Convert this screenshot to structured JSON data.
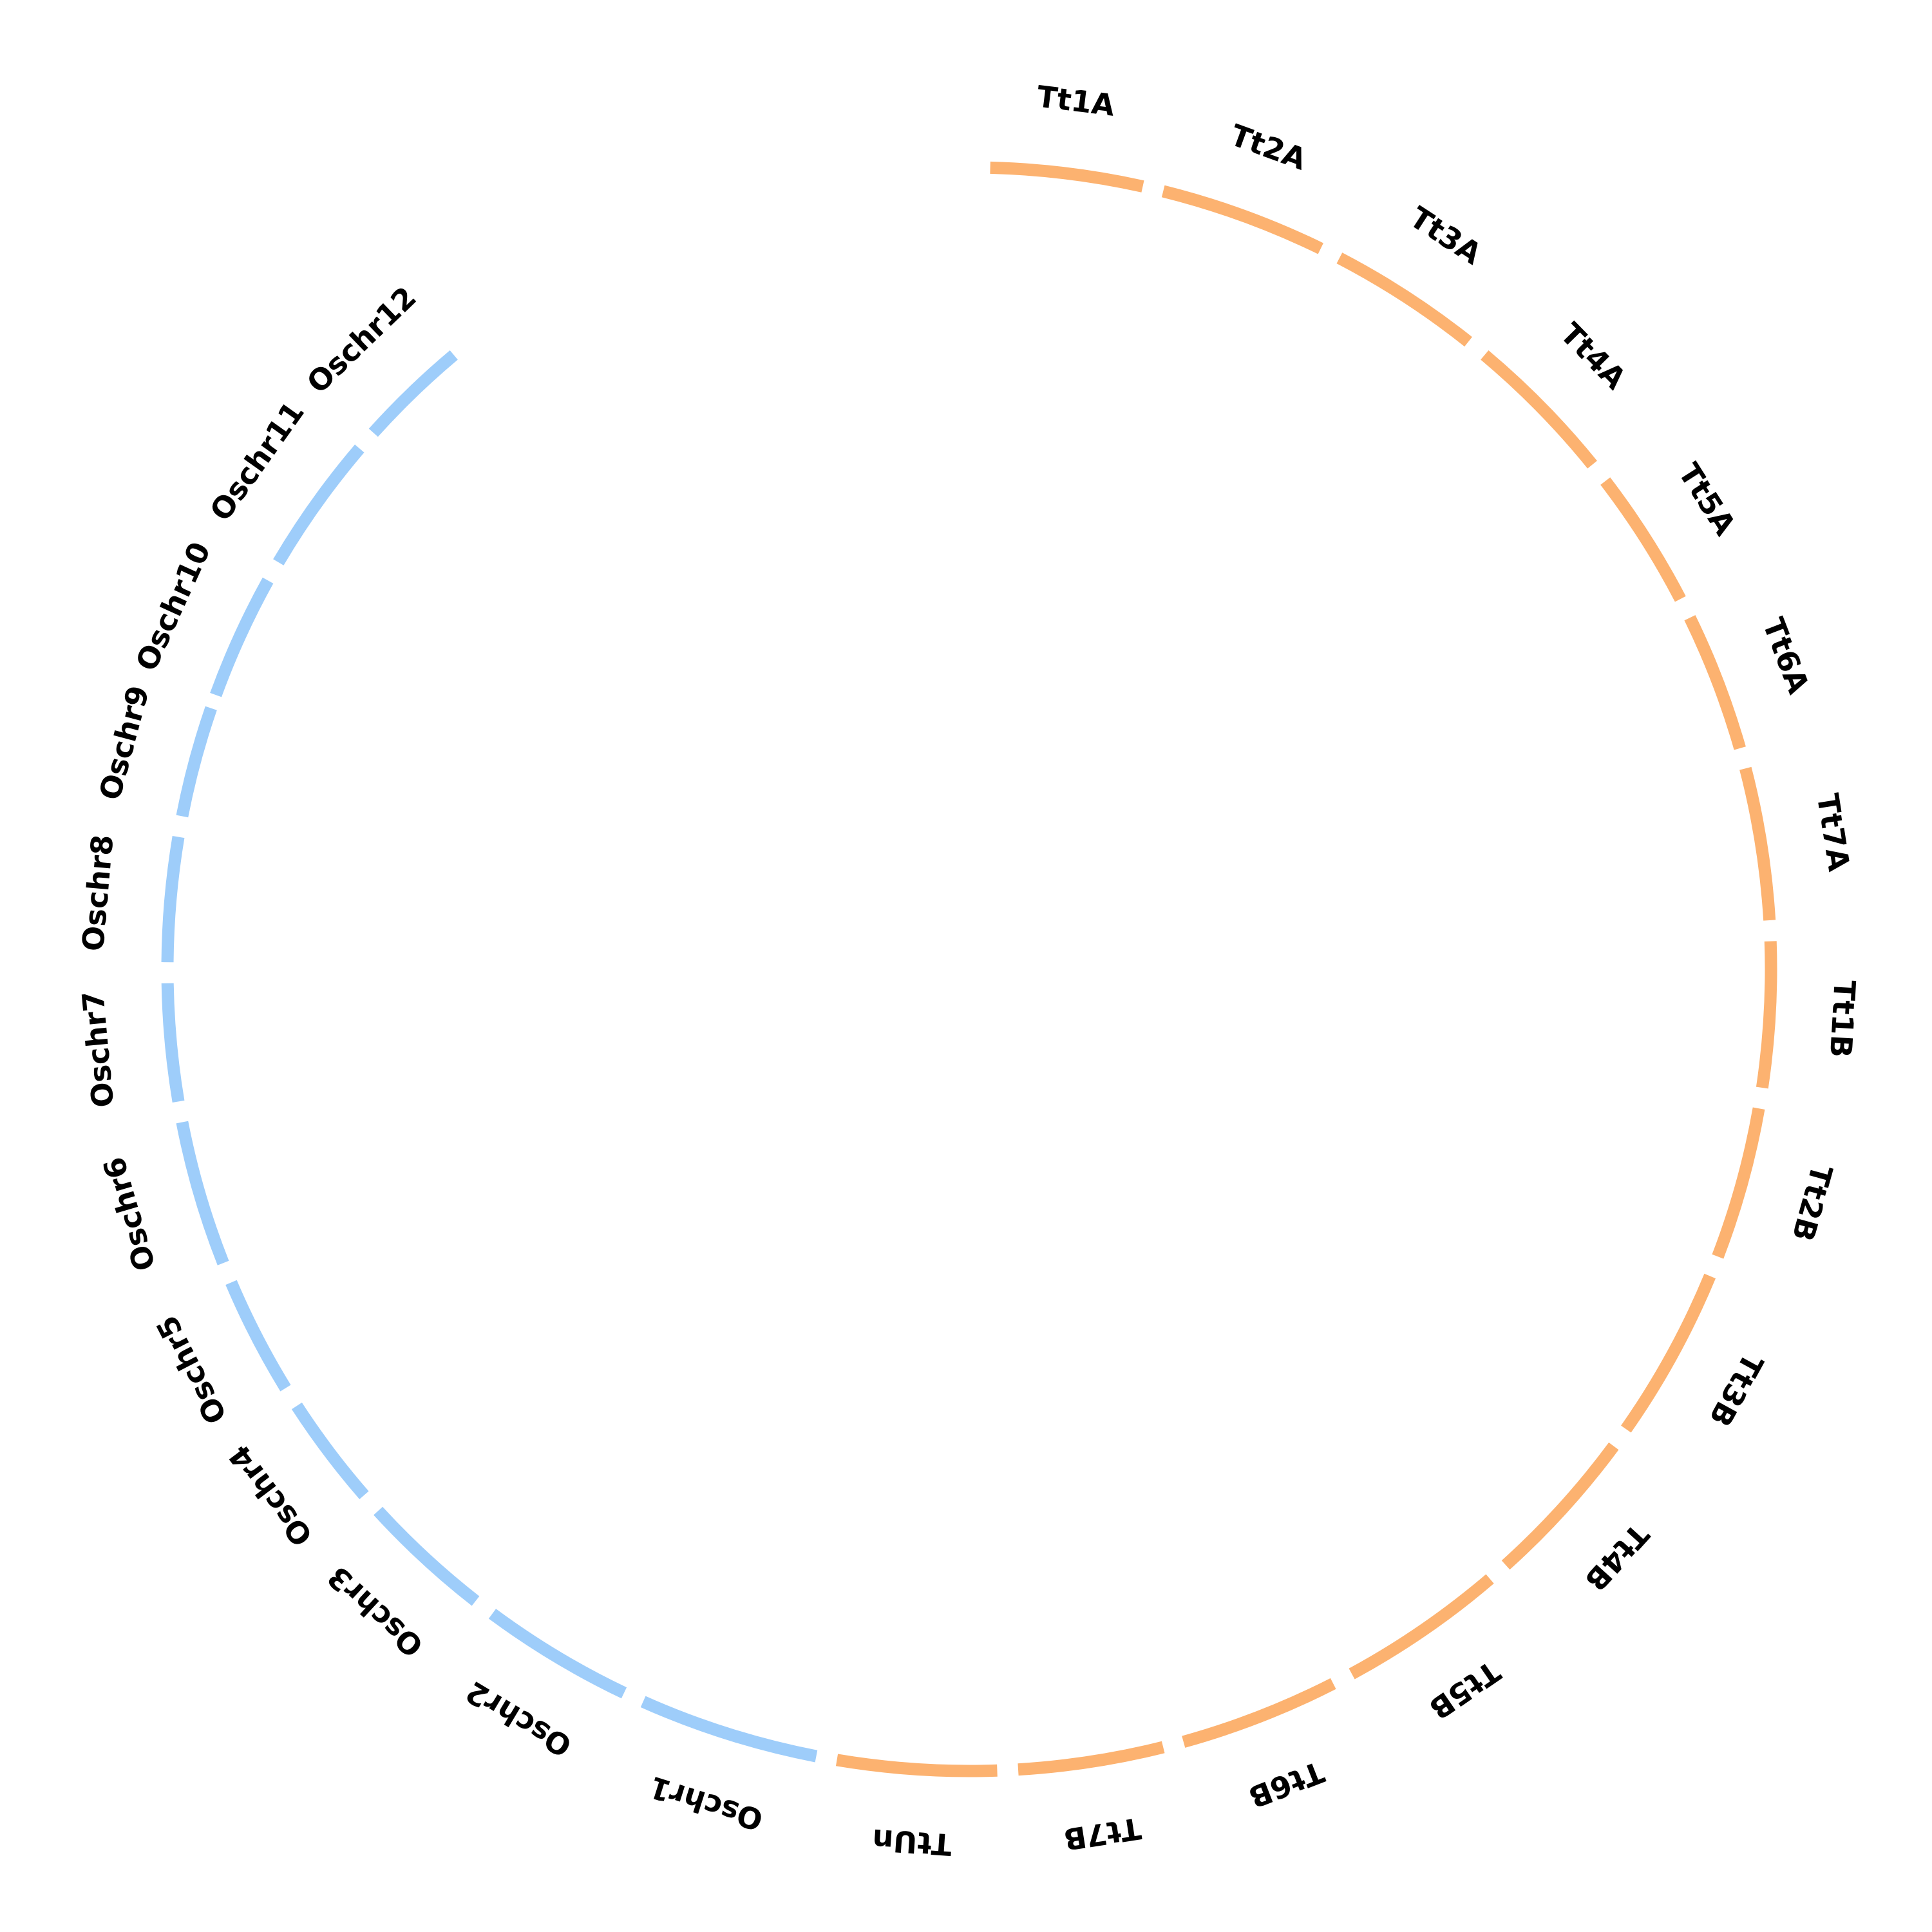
{
  "colors": {
    "wheat_segment": "#FCB270",
    "rice_segment": "#9ECDFA",
    "label": "#000000",
    "background": "#FFFFFF"
  },
  "segments": [
    {
      "label": "Tt1A",
      "group": "wheat"
    },
    {
      "label": "Tt2A",
      "group": "wheat"
    },
    {
      "label": "Tt3A",
      "group": "wheat"
    },
    {
      "label": "Tt4A",
      "group": "wheat"
    },
    {
      "label": "Tt5A",
      "group": "wheat"
    },
    {
      "label": "Tt6A",
      "group": "wheat"
    },
    {
      "label": "Tt7A",
      "group": "wheat"
    },
    {
      "label": "Tt1B",
      "group": "wheat"
    },
    {
      "label": "Tt2B",
      "group": "wheat"
    },
    {
      "label": "Tt3B",
      "group": "wheat"
    },
    {
      "label": "Tt4B",
      "group": "wheat"
    },
    {
      "label": "Tt5B",
      "group": "wheat"
    },
    {
      "label": "Tt6B",
      "group": "wheat"
    },
    {
      "label": "Tt7B",
      "group": "wheat"
    },
    {
      "label": "TtUn",
      "group": "wheat"
    },
    {
      "label": "Oschr1",
      "group": "rice"
    },
    {
      "label": "Oschr2",
      "group": "rice"
    },
    {
      "label": "Oschr3",
      "group": "rice"
    },
    {
      "label": "Oschr4",
      "group": "rice"
    },
    {
      "label": "Oschr5",
      "group": "rice"
    },
    {
      "label": "Oschr6",
      "group": "rice"
    },
    {
      "label": "Oschr7",
      "group": "rice"
    },
    {
      "label": "Oschr8",
      "group": "rice"
    },
    {
      "label": "Oschr9",
      "group": "rice"
    },
    {
      "label": "Oschr10",
      "group": "rice"
    },
    {
      "label": "Oschr11",
      "group": "rice"
    },
    {
      "label": "Oschr12",
      "group": "rice"
    }
  ]
}
